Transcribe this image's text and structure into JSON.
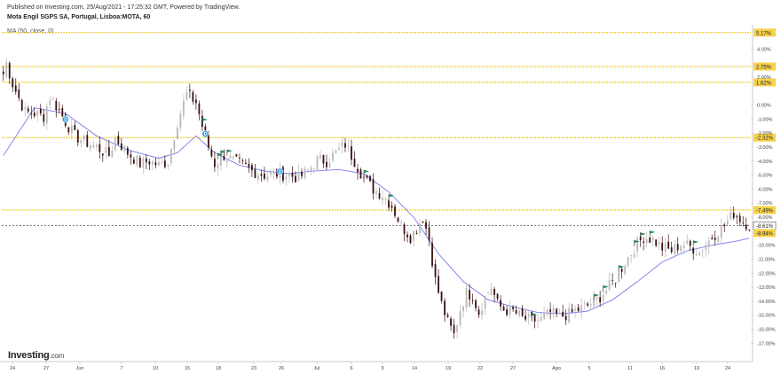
{
  "header": {
    "published": "Published on Investing.com, 25/Aug/2021 - 17:25:32 GMT, Powered by TradingView.",
    "title": "Mota Engil SGPS SA, Portugal, Lisboa:MOTA, 60",
    "indicator": "MA (50, close, 0)"
  },
  "logo": {
    "brand": "Investing",
    "domain": ".com"
  },
  "colors": {
    "up": "#b9b9b9",
    "down": "#3a1010",
    "ma": "#7b7bef",
    "hline": "#f0c000",
    "label_bg": "#f6d24a",
    "flag": "#1f8a5b",
    "marker": "#2b9be8"
  },
  "chart_data": {
    "type": "candlestick",
    "x_tick_labels": [
      "24",
      "27",
      "Jun",
      "7",
      "10",
      "15",
      "18",
      "23",
      "26",
      "Jul",
      "6",
      "9",
      "14",
      "19",
      "22",
      "27",
      "Ago",
      "5",
      "11",
      "16",
      "19",
      "24"
    ],
    "y_axis": {
      "unit": "%",
      "range": [
        -17.8,
        5.6
      ]
    },
    "y_tick_labels": [
      "4.00%",
      "2.00%",
      "0.00%",
      "-1.00%",
      "-2.00%",
      "-3.00%",
      "-4.00%",
      "-5.00%",
      "-6.00%",
      "-7.00%",
      "-8.00%",
      "-10.00%",
      "-11.00%",
      "-12.00%",
      "-13.00%",
      "-14.00%",
      "-15.00%",
      "-16.00%",
      "-17.00%"
    ],
    "horizontal_levels": [
      {
        "label": "5.17%",
        "value": 5.17
      },
      {
        "label": "2.75%",
        "value": 2.75
      },
      {
        "label": "1.62%",
        "value": 1.62
      },
      {
        "label": "-2.32%",
        "value": -2.32
      },
      {
        "label": "-7.49%",
        "value": -7.49
      }
    ],
    "last_price": {
      "label": "-8.61%",
      "value": -8.61
    },
    "extra_label": {
      "label": "-8.94%",
      "value": -8.94
    },
    "price_anchors": [
      [
        0,
        2.2
      ],
      [
        1,
        3.0
      ],
      [
        3,
        1.5
      ],
      [
        5,
        0.5
      ],
      [
        7,
        -0.5
      ],
      [
        10,
        -0.6
      ],
      [
        13,
        -0.8
      ],
      [
        15,
        0.6
      ],
      [
        18,
        -0.4
      ],
      [
        20,
        -1.2
      ],
      [
        23,
        -2.2
      ],
      [
        26,
        -2.6
      ],
      [
        30,
        -3.0
      ],
      [
        34,
        -3.6
      ],
      [
        36,
        -2.4
      ],
      [
        40,
        -3.4
      ],
      [
        44,
        -4.2
      ],
      [
        47,
        -4.0
      ],
      [
        50,
        -4.3
      ],
      [
        53,
        -4.0
      ],
      [
        56,
        -1.2
      ],
      [
        59,
        0.8
      ],
      [
        62,
        0.2
      ],
      [
        64,
        -1.5
      ],
      [
        66,
        -3.0
      ],
      [
        68,
        -4.2
      ],
      [
        71,
        -3.6
      ],
      [
        74,
        -4.0
      ],
      [
        77,
        -4.3
      ],
      [
        80,
        -4.7
      ],
      [
        84,
        -5.0
      ],
      [
        88,
        -4.9
      ],
      [
        92,
        -5.0
      ],
      [
        95,
        -5.2
      ],
      [
        98,
        -4.7
      ],
      [
        101,
        -3.9
      ],
      [
        104,
        -4.0
      ],
      [
        107,
        -3.4
      ],
      [
        110,
        -2.8
      ],
      [
        113,
        -4.0
      ],
      [
        116,
        -5.2
      ],
      [
        119,
        -6.0
      ],
      [
        122,
        -6.4
      ],
      [
        125,
        -7.2
      ],
      [
        128,
        -8.6
      ],
      [
        131,
        -9.4
      ],
      [
        133,
        -8.8
      ],
      [
        135,
        -8.0
      ],
      [
        137,
        -9.6
      ],
      [
        139,
        -12.5
      ],
      [
        141,
        -14.2
      ],
      [
        143,
        -15.5
      ],
      [
        145,
        -16.4
      ],
      [
        147,
        -14.6
      ],
      [
        149,
        -13.4
      ],
      [
        151,
        -13.6
      ],
      [
        153,
        -14.8
      ],
      [
        155,
        -13.7
      ],
      [
        157,
        -13.0
      ],
      [
        159,
        -14.2
      ],
      [
        161,
        -14.6
      ],
      [
        164,
        -14.7
      ],
      [
        167,
        -15.2
      ],
      [
        170,
        -15.4
      ],
      [
        173,
        -15.3
      ],
      [
        176,
        -14.8
      ],
      [
        179,
        -15.1
      ],
      [
        182,
        -14.9
      ],
      [
        185,
        -14.6
      ],
      [
        188,
        -14.3
      ],
      [
        191,
        -13.9
      ],
      [
        194,
        -13.2
      ],
      [
        197,
        -12.4
      ],
      [
        200,
        -11.2
      ],
      [
        203,
        -10.2
      ],
      [
        206,
        -9.4
      ],
      [
        209,
        -9.6
      ],
      [
        212,
        -10.2
      ],
      [
        215,
        -10.4
      ],
      [
        218,
        -9.9
      ],
      [
        221,
        -10.1
      ],
      [
        224,
        -10.5
      ],
      [
        226,
        -9.9
      ],
      [
        229,
        -9.2
      ],
      [
        232,
        -8.6
      ],
      [
        235,
        -7.7
      ],
      [
        238,
        -8.3
      ],
      [
        240,
        -8.6
      ]
    ],
    "moving_average": [
      [
        0,
        -3.6
      ],
      [
        10,
        -0.2
      ],
      [
        20,
        -0.6
      ],
      [
        30,
        -2.2
      ],
      [
        40,
        -3.2
      ],
      [
        50,
        -3.8
      ],
      [
        56,
        -3.4
      ],
      [
        62,
        -2.2
      ],
      [
        68,
        -3.4
      ],
      [
        76,
        -4.3
      ],
      [
        84,
        -4.7
      ],
      [
        92,
        -4.9
      ],
      [
        100,
        -4.7
      ],
      [
        108,
        -4.6
      ],
      [
        116,
        -4.9
      ],
      [
        124,
        -6.2
      ],
      [
        132,
        -8.0
      ],
      [
        140,
        -10.6
      ],
      [
        148,
        -12.6
      ],
      [
        156,
        -13.9
      ],
      [
        164,
        -14.4
      ],
      [
        172,
        -14.8
      ],
      [
        180,
        -14.9
      ],
      [
        188,
        -14.7
      ],
      [
        196,
        -13.9
      ],
      [
        204,
        -12.6
      ],
      [
        212,
        -11.2
      ],
      [
        220,
        -10.4
      ],
      [
        228,
        -10.0
      ],
      [
        236,
        -9.7
      ],
      [
        240,
        -9.5
      ]
    ],
    "flag_markers": [
      64,
      69,
      70,
      72,
      116,
      124,
      170,
      190,
      193,
      198,
      203,
      205,
      208,
      222
    ],
    "circle_markers": [
      {
        "bar": 20,
        "label": "D"
      },
      {
        "bar": 65,
        "label": "D"
      },
      {
        "bar": 89,
        "label": "D"
      }
    ]
  }
}
